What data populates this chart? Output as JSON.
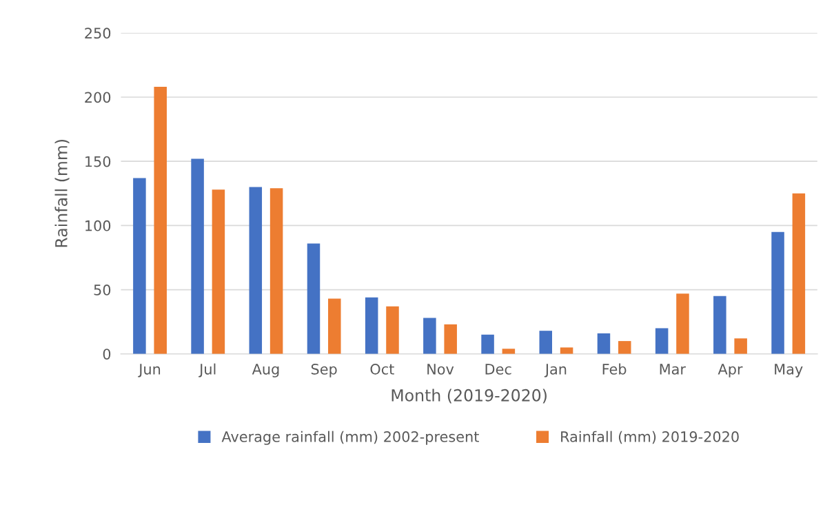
{
  "chart_data": {
    "type": "bar",
    "xlabel": "Month (2019-2020)",
    "ylabel": "Rainfall (mm)",
    "categories": [
      "Jun",
      "Jul",
      "Aug",
      "Sep",
      "Oct",
      "Nov",
      "Dec",
      "Jan",
      "Feb",
      "Mar",
      "Apr",
      "May"
    ],
    "series": [
      {
        "name": "Average rainfall (mm) 2002-present",
        "color": "#4472c4",
        "values": [
          137,
          152,
          130,
          86,
          44,
          28,
          15,
          18,
          16,
          20,
          45,
          95
        ]
      },
      {
        "name": "Rainfall (mm) 2019-2020",
        "color": "#ed7d31",
        "values": [
          208,
          128,
          129,
          43,
          37,
          23,
          4,
          5,
          10,
          47,
          12,
          125
        ]
      }
    ],
    "ylim": [
      0,
      250
    ],
    "yticks": [
      0,
      50,
      100,
      150,
      200,
      250
    ],
    "grid": "y",
    "legend": "bottom"
  }
}
